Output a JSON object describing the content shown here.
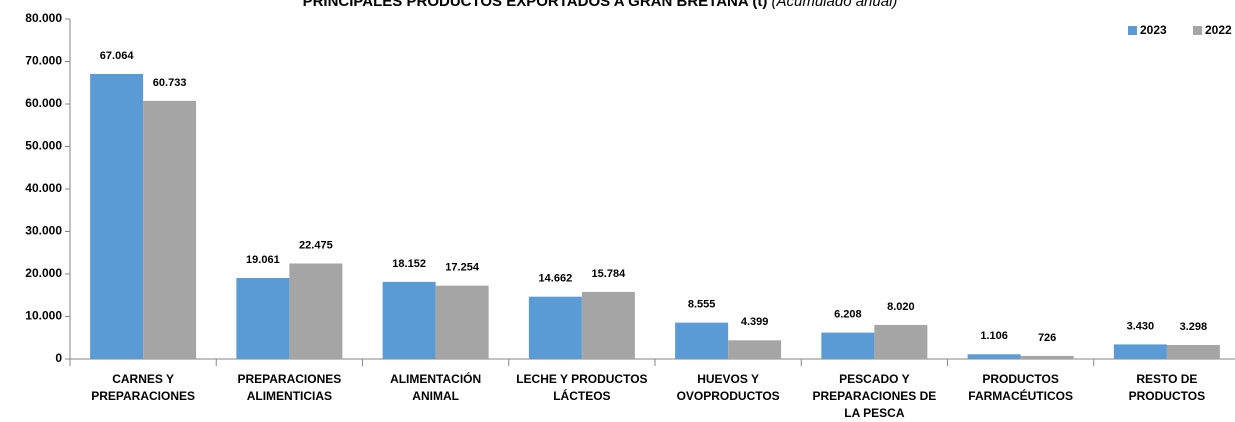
{
  "chart_data": {
    "type": "bar",
    "title": "PRINCIPALES PRODUCTOS EXPORTADOS A GRAN BRETAÑA (t)",
    "subtitle": "(Acumulado anual)",
    "categories": [
      [
        "CARNES Y",
        "PREPARACIONES"
      ],
      [
        "PREPARACIONES",
        "ALIMENTICIAS"
      ],
      [
        "ALIMENTACIÓN",
        "ANIMAL"
      ],
      [
        "LECHE Y PRODUCTOS",
        "LÁCTEOS"
      ],
      [
        "HUEVOS Y",
        "OVOPRODUCTOS"
      ],
      [
        "PESCADO Y",
        "PREPARACIONES DE",
        "LA PESCA"
      ],
      [
        "PRODUCTOS",
        "FARMACÉUTICOS"
      ],
      [
        "RESTO DE",
        "PRODUCTOS"
      ]
    ],
    "series": [
      {
        "name": "2023",
        "color": "#5b9bd5",
        "values": [
          67064,
          19061,
          18152,
          14662,
          8555,
          6208,
          1106,
          3430
        ],
        "value_labels": [
          "67.064",
          "19.061",
          "18.152",
          "14.662",
          "8.555",
          "6.208",
          "1.106",
          "3.430"
        ]
      },
      {
        "name": "2022",
        "color": "#a5a5a5",
        "values": [
          60733,
          22475,
          17254,
          15784,
          4399,
          8020,
          726,
          3298
        ],
        "value_labels": [
          "60.733",
          "22.475",
          "17.254",
          "15.784",
          "4.399",
          "8.020",
          "726",
          "3.298"
        ]
      }
    ],
    "ylim": [
      0,
      80000
    ],
    "yticks": [
      0,
      {
        "value": 10000,
        "label": "10.000"
      },
      {
        "value": 20000,
        "label": "20.000"
      },
      {
        "value": 30000,
        "label": "30.000"
      },
      {
        "value": 40000,
        "label": "40.000"
      },
      {
        "value": 50000,
        "label": "50.000"
      },
      {
        "value": 60000,
        "label": "60.000"
      },
      {
        "value": 70000,
        "label": "70.000"
      },
      {
        "value": 80000,
        "label": "80.000"
      }
    ],
    "grid": false,
    "legend": "top-right"
  }
}
